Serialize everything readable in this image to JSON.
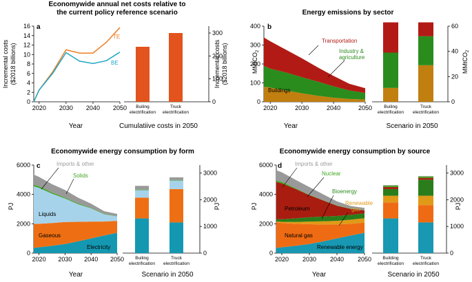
{
  "titles": {
    "a": "Economywide annual net costs relative to the current policy reference scenario",
    "b": "Energy emissions by sector",
    "c": "Economywide energy consumption by form",
    "d": "Economywide energy consumption by source"
  },
  "colors": {
    "TE": "#ef7d22",
    "BE": "#1fa6c6",
    "bar_a": "#e2531d",
    "transport": "#b21b15",
    "industry": "#2a8c1c",
    "buildings": "#c17f10",
    "imports": "#999999",
    "solids": "#41a525",
    "liquids": "#a7d3ea",
    "gaseous": "#ee6f13",
    "electricity": "#1498b2",
    "nuclear": "#3fa81f",
    "bioenergy": "#2a7d1a",
    "petroleum": "#a81d10",
    "renewable_gas": "#e09a18",
    "natural_gas": "#ef6b13",
    "renewable": "#1898b2",
    "gray_label": "#9a9a9a"
  },
  "chart_data": [
    {
      "panel": "a",
      "type": "line",
      "title": "Economywide annual net costs relative to the current policy reference scenario",
      "ylabel": "Incremental costs ($2018 billions)",
      "xlabel": "Year",
      "xlim": [
        2018,
        2050
      ],
      "ylim": [
        0,
        16
      ],
      "xticks": [
        2020,
        2030,
        2040,
        2050
      ],
      "yticks": [
        0,
        2,
        4,
        6,
        8,
        10,
        12,
        14,
        16
      ],
      "series": [
        {
          "name": "TE",
          "x": [
            2018,
            2020,
            2025,
            2030,
            2035,
            2040,
            2045,
            2050
          ],
          "y": [
            0,
            2.5,
            6.3,
            11.0,
            10.3,
            10.3,
            12.6,
            15.7
          ]
        },
        {
          "name": "BE",
          "x": [
            2018,
            2020,
            2025,
            2030,
            2035,
            2040,
            2045,
            2050
          ],
          "y": [
            0,
            2.5,
            6.0,
            10.4,
            8.6,
            8.1,
            8.7,
            10.5
          ]
        }
      ]
    },
    {
      "panel": "a-bars",
      "type": "bar",
      "xlabel": "Cumulatiive costs in 2050",
      "ylabel": "Incremental costs ($2018 billions)",
      "ylim": [
        0,
        330
      ],
      "yticks": [
        0,
        100,
        200,
        300
      ],
      "categories": [
        "Builing electrification",
        "Truck electrification"
      ],
      "values": [
        240,
        300
      ]
    },
    {
      "panel": "b",
      "type": "area",
      "title": "Energy emissions by sector",
      "ylabel": "MMtCO2",
      "xlabel": "Year",
      "xlim": [
        2018,
        2050
      ],
      "ylim": [
        0,
        400
      ],
      "xticks": [
        2020,
        2030,
        2040,
        2050
      ],
      "yticks": [
        0,
        100,
        200,
        300,
        400
      ],
      "x": [
        2018,
        2020,
        2025,
        2030,
        2035,
        2040,
        2045,
        2050
      ],
      "series": [
        {
          "name": "Buildings",
          "values": [
            80,
            75,
            60,
            45,
            32,
            22,
            15,
            12
          ]
        },
        {
          "name": "Industry & agriculture",
          "values": [
            110,
            100,
            95,
            85,
            75,
            60,
            45,
            35
          ]
        },
        {
          "name": "Transportation",
          "values": [
            150,
            145,
            120,
            100,
            75,
            55,
            35,
            25
          ]
        }
      ]
    },
    {
      "panel": "b-bars",
      "type": "bar",
      "xlabel": "Scenario in 2050",
      "ylabel": "MMtCO2",
      "ylim": [
        0,
        60
      ],
      "yticks": [
        0,
        20,
        40,
        60
      ],
      "categories": [
        "Builing electrification",
        "Truck electrification"
      ],
      "series": [
        {
          "name": "Buildings",
          "values": [
            11,
            29
          ]
        },
        {
          "name": "Industry & agriculture",
          "values": [
            28,
            23
          ]
        },
        {
          "name": "Transportation",
          "values": [
            24,
            11
          ]
        }
      ]
    },
    {
      "panel": "c",
      "type": "area",
      "title": "Economywide energy consumption by form",
      "ylabel": "PJ",
      "xlabel": "Year",
      "xlim": [
        2018,
        2050
      ],
      "ylim": [
        0,
        6000
      ],
      "xticks": [
        2020,
        2030,
        2040,
        2050
      ],
      "yticks": [
        0,
        2000,
        4000,
        6000
      ],
      "x": [
        2018,
        2020,
        2025,
        2030,
        2035,
        2040,
        2045,
        2050
      ],
      "series": [
        {
          "name": "Electricity",
          "values": [
            350,
            400,
            500,
            620,
            800,
            1000,
            1200,
            1380
          ]
        },
        {
          "name": "Gaseous",
          "values": [
            1650,
            1600,
            1550,
            1500,
            1330,
            1150,
            950,
            820
          ]
        },
        {
          "name": "Liquids",
          "values": [
            2550,
            2450,
            2000,
            1600,
            1200,
            900,
            500,
            300
          ]
        },
        {
          "name": "Solids",
          "values": [
            100,
            100,
            80,
            60,
            50,
            40,
            30,
            20
          ]
        },
        {
          "name": "Imports & other",
          "values": [
            700,
            650,
            570,
            520,
            400,
            280,
            180,
            150
          ]
        }
      ]
    },
    {
      "panel": "c-bars",
      "type": "bar",
      "xlabel": "Scenario in 2050",
      "ylabel": "PJ",
      "ylim": [
        0,
        3300
      ],
      "yticks": [
        0,
        1000,
        2000,
        3000
      ],
      "categories": [
        "Builing electrification",
        "Truck electrification"
      ],
      "series": [
        {
          "name": "Electricity",
          "values": [
            1300,
            1150
          ]
        },
        {
          "name": "Gaseous",
          "values": [
            780,
            1250
          ]
        },
        {
          "name": "Liquids",
          "values": [
            280,
            320
          ]
        },
        {
          "name": "Solids",
          "values": [
            20,
            20
          ]
        },
        {
          "name": "Imports & other",
          "values": [
            140,
            100
          ]
        }
      ]
    },
    {
      "panel": "d",
      "type": "area",
      "title": "Economywide energy consumption by source",
      "ylabel": "PJ",
      "xlabel": "Year",
      "xlim": [
        2018,
        2050
      ],
      "ylim": [
        0,
        6000
      ],
      "xticks": [
        2020,
        2030,
        2040,
        2050
      ],
      "yticks": [
        0,
        2000,
        4000,
        6000
      ],
      "x": [
        2018,
        2020,
        2025,
        2030,
        2035,
        2040,
        2045,
        2050
      ],
      "series": [
        {
          "name": "Renewable energy",
          "values": [
            350,
            400,
            500,
            620,
            800,
            1000,
            1200,
            1380
          ]
        },
        {
          "name": "Natural gas",
          "values": [
            1750,
            1650,
            1500,
            1350,
            1150,
            950,
            800,
            700
          ]
        },
        {
          "name": "Renewable gas",
          "values": [
            50,
            80,
            120,
            180,
            220,
            250,
            280,
            300
          ]
        },
        {
          "name": "Bioenergy",
          "values": [
            150,
            180,
            250,
            300,
            320,
            330,
            330,
            330
          ]
        },
        {
          "name": "Petroleum",
          "values": [
            2550,
            2450,
            2000,
            1500,
            1100,
            700,
            400,
            200
          ]
        },
        {
          "name": "Nuclear",
          "values": [
            100,
            100,
            50,
            30,
            20,
            20,
            20,
            20
          ]
        },
        {
          "name": "Imports & other",
          "values": [
            700,
            650,
            570,
            520,
            400,
            280,
            180,
            150
          ]
        }
      ]
    },
    {
      "panel": "d-bars",
      "type": "bar",
      "xlabel": "Scenario in 2050",
      "ylabel": "PJ",
      "ylim": [
        0,
        3300
      ],
      "yticks": [
        0,
        1000,
        2000,
        3000
      ],
      "categories": [
        "Building electrification",
        "Truck electrification"
      ],
      "series": [
        {
          "name": "Renewable energy",
          "values": [
            1300,
            1150
          ]
        },
        {
          "name": "Natural gas",
          "values": [
            600,
            650
          ]
        },
        {
          "name": "Renewable gas",
          "values": [
            250,
            350
          ]
        },
        {
          "name": "Bioenergy",
          "values": [
            250,
            600
          ]
        },
        {
          "name": "Petroleum",
          "values": [
            80,
            70
          ]
        },
        {
          "name": "Nuclear",
          "values": [
            50,
            50
          ]
        },
        {
          "name": "Imports & other",
          "values": [
            20,
            20
          ]
        }
      ]
    }
  ],
  "labels": {
    "panel_letters": [
      "a",
      "b",
      "c",
      "d"
    ],
    "a_te": "TE",
    "a_be": "BE",
    "b_transport": "Transportation",
    "b_industry_1": "Industry &",
    "b_industry_2": "agriculture",
    "b_buildings": "Buildings",
    "c_imports": "Imports & other",
    "c_solids": "Solids",
    "c_liquids": "Liquids",
    "c_gaseous": "Gaseous",
    "c_electricity": "Electricity",
    "d_imports": "Imports & other",
    "d_nuclear": "Nuclear",
    "d_bioenergy": "Bioenergy",
    "d_petroleum": "Petroleum",
    "d_renewable_gas_1": "Renewable",
    "d_renewable_gas_2": "gas",
    "d_natural_gas": "Natural gas",
    "d_renewable": "Renewable energy",
    "a_ylabel_1": "Incremental costs",
    "a_ylabel_2": "($2018 billions)",
    "mmtco2_prefix": "MMtCO",
    "co2_sub": "2",
    "cat_1a": "Builing",
    "cat_1b": "electrification",
    "cat_2a": "Truck",
    "cat_2b": "electrification",
    "cat_d1a": "Building"
  }
}
